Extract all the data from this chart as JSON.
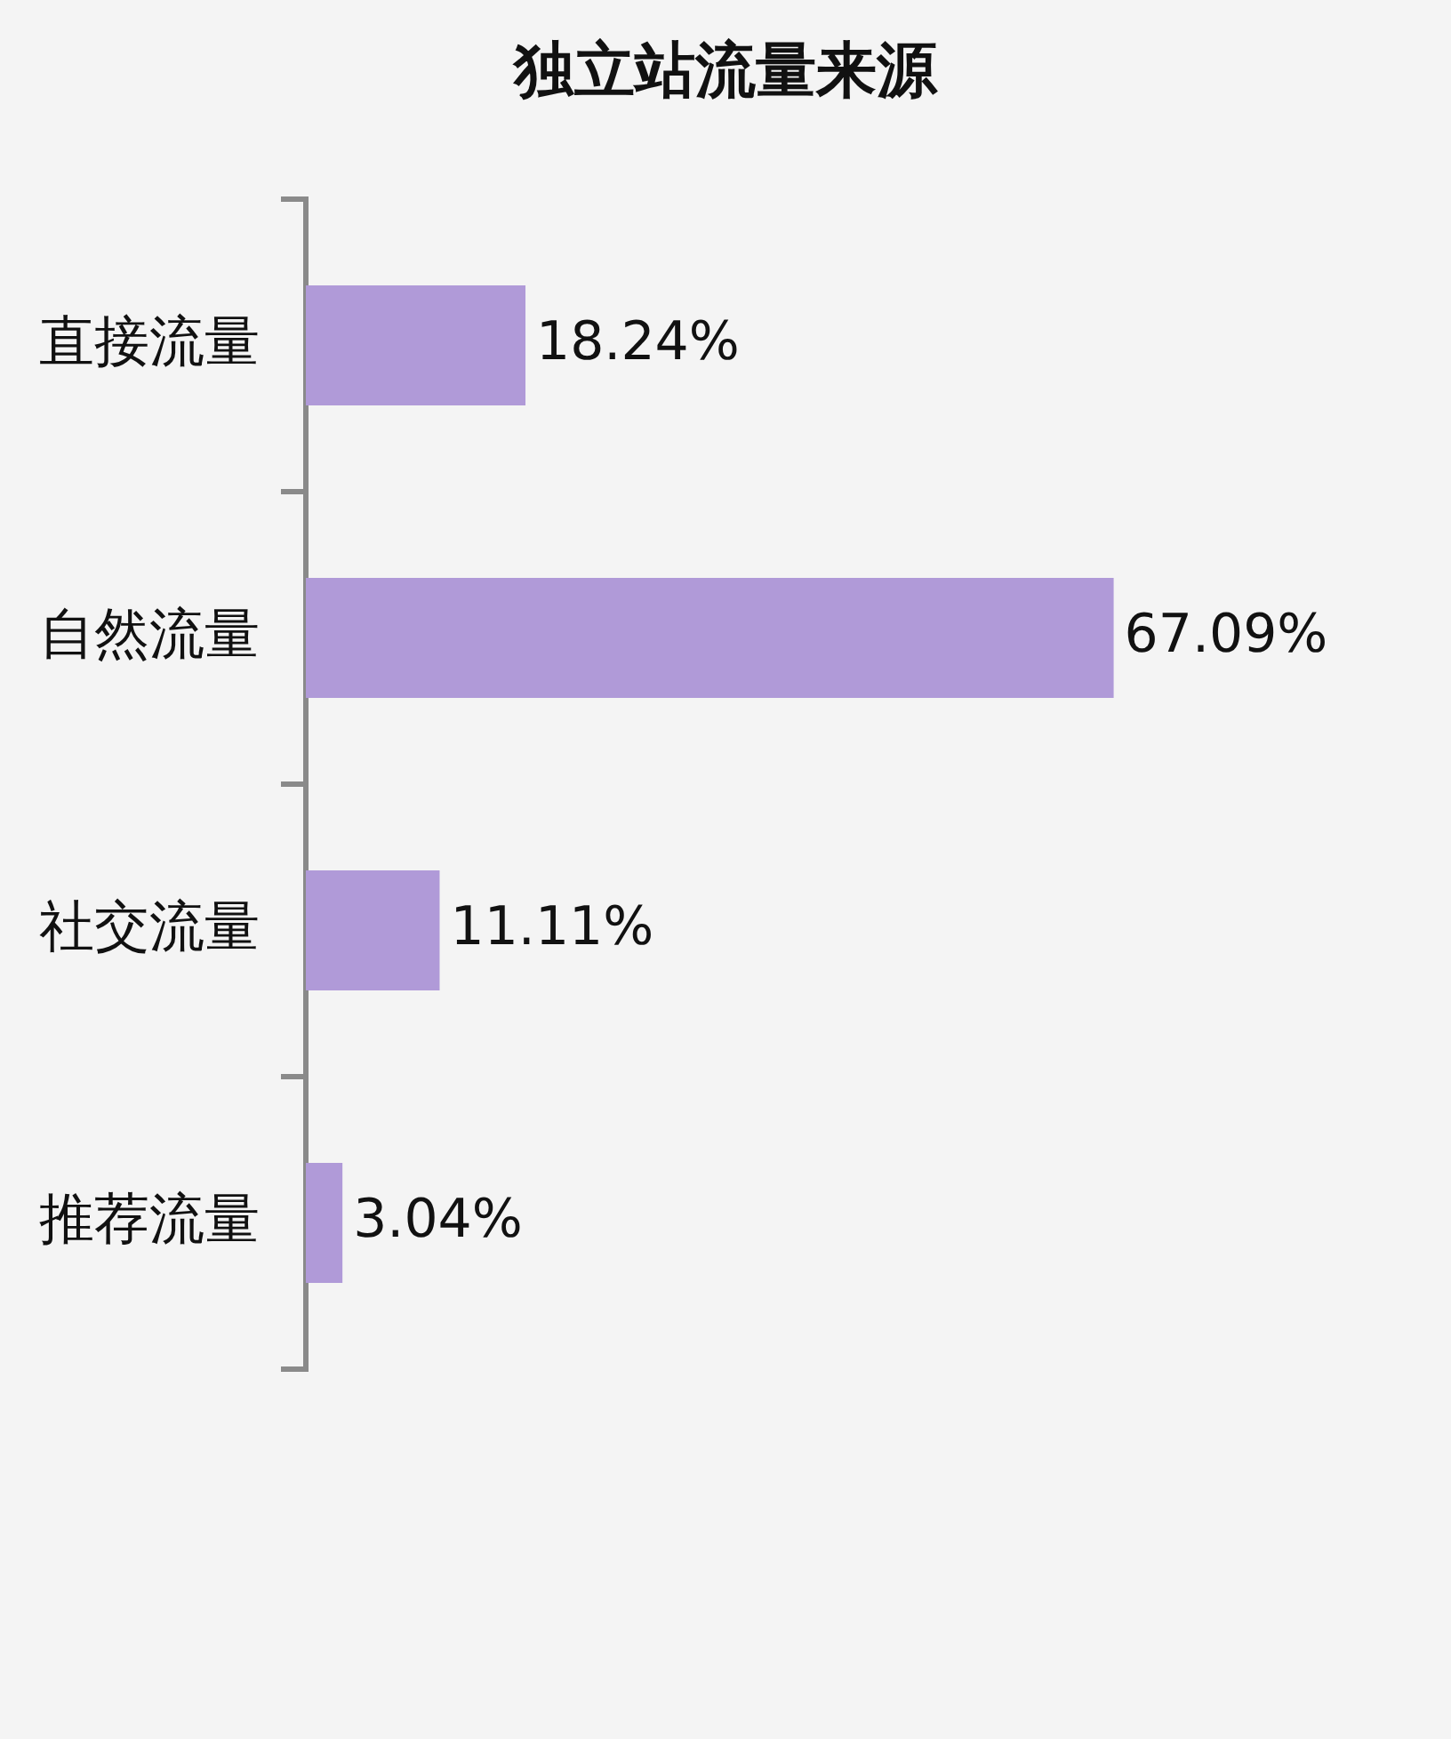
{
  "chart_data": {
    "type": "bar",
    "orientation": "horizontal",
    "title": "独立站流量来源",
    "categories": [
      "直接流量",
      "自然流量",
      "社交流量",
      "推荐流量"
    ],
    "series": [
      {
        "color": "#b09ad8",
        "values": [
          18.24,
          67.09,
          11.11,
          3.04
        ],
        "value_labels": [
          "18.24%",
          "67.09%",
          "11.11%",
          "3.04%"
        ]
      }
    ],
    "grid": false,
    "legend": false,
    "tick_labels": "y"
  }
}
